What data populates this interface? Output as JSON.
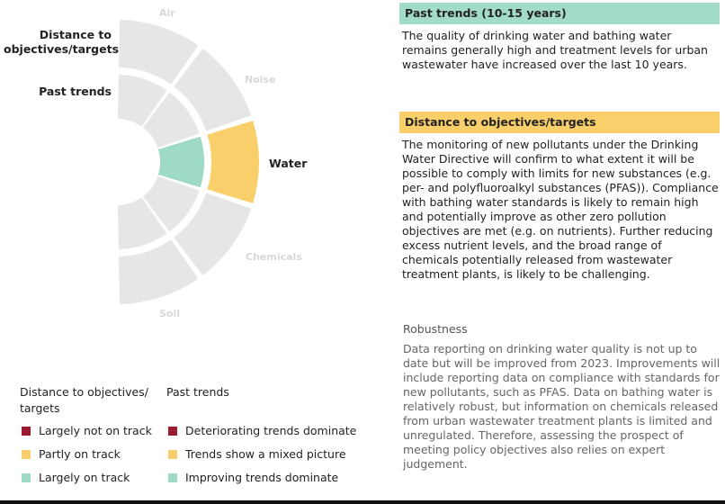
{
  "colors": {
    "grey": "#e6e6e6",
    "not_on_track": "#9b1c31",
    "partly": "#f9cf6c",
    "on_track": "#9fdac5",
    "past_head_bg": "#a3dcc6",
    "dist_head_bg": "#f9cf6c"
  },
  "ring_labels": {
    "outer": "Distance to objectives/targets",
    "inner": "Past trends"
  },
  "sectors": {
    "air": "Air",
    "noise": "Noise",
    "water": "Water",
    "chemicals": "Chemicals",
    "soil": "Soil"
  },
  "chart_data": {
    "type": "radial-sector",
    "rings": [
      {
        "name": "Distance to objectives/targets",
        "segments": [
          "grey",
          "grey",
          "partly",
          "grey",
          "grey"
        ]
      },
      {
        "name": "Past trends",
        "segments": [
          "grey",
          "grey",
          "on_track",
          "grey",
          "grey"
        ]
      }
    ],
    "sectors": [
      "Air",
      "Noise",
      "Water",
      "Chemicals",
      "Soil"
    ],
    "highlighted_sector": "Water"
  },
  "legend": {
    "distance_title": "Distance to objectives/ targets",
    "past_title": "Past trends",
    "distance_items": [
      {
        "label": "Largely not on track",
        "color": "#9b1c31"
      },
      {
        "label": "Partly on track",
        "color": "#f9cf6c"
      },
      {
        "label": "Largely on track",
        "color": "#9fdac5"
      }
    ],
    "past_items": [
      {
        "label": "Deteriorating trends dominate",
        "color": "#9b1c31"
      },
      {
        "label": "Trends show a mixed picture",
        "color": "#f9cf6c"
      },
      {
        "label": "Improving trends dominate",
        "color": "#9fdac5"
      }
    ]
  },
  "past_trends_panel": {
    "heading": "Past trends (10-15 years)",
    "text": "The quality of drinking water and bathing water remains generally high and treatment levels for urban wastewater have increased over the last 10 years."
  },
  "distance_panel": {
    "heading": "Distance to objectives/targets",
    "text": "The monitoring of new pollutants under the Drinking Water Directive will confirm to what extent it will be possible to comply with limits for new substances (e.g. per- and polyfluoroalkyl substances (PFAS)). Compliance with bathing water standards is likely to remain high and potentially improve as other zero pollution objectives are met (e.g. on nutrients). Further reducing excess nutrient levels, and the broad range of chemicals potentially released from wastewater treatment plants, is likely to be challenging."
  },
  "robustness": {
    "title": "Robustness",
    "text": "Data reporting on drinking water quality is not up to date but will be improved from 2023. Improvements will include reporting data on compliance with standards for new pollutants, such as PFAS. Data on bathing water is relatively robust, but information on chemicals released from urban wastewater treatment plants is limited and unregulated. Therefore, assessing the prospect of meeting policy objectives also relies on expert judgement."
  }
}
